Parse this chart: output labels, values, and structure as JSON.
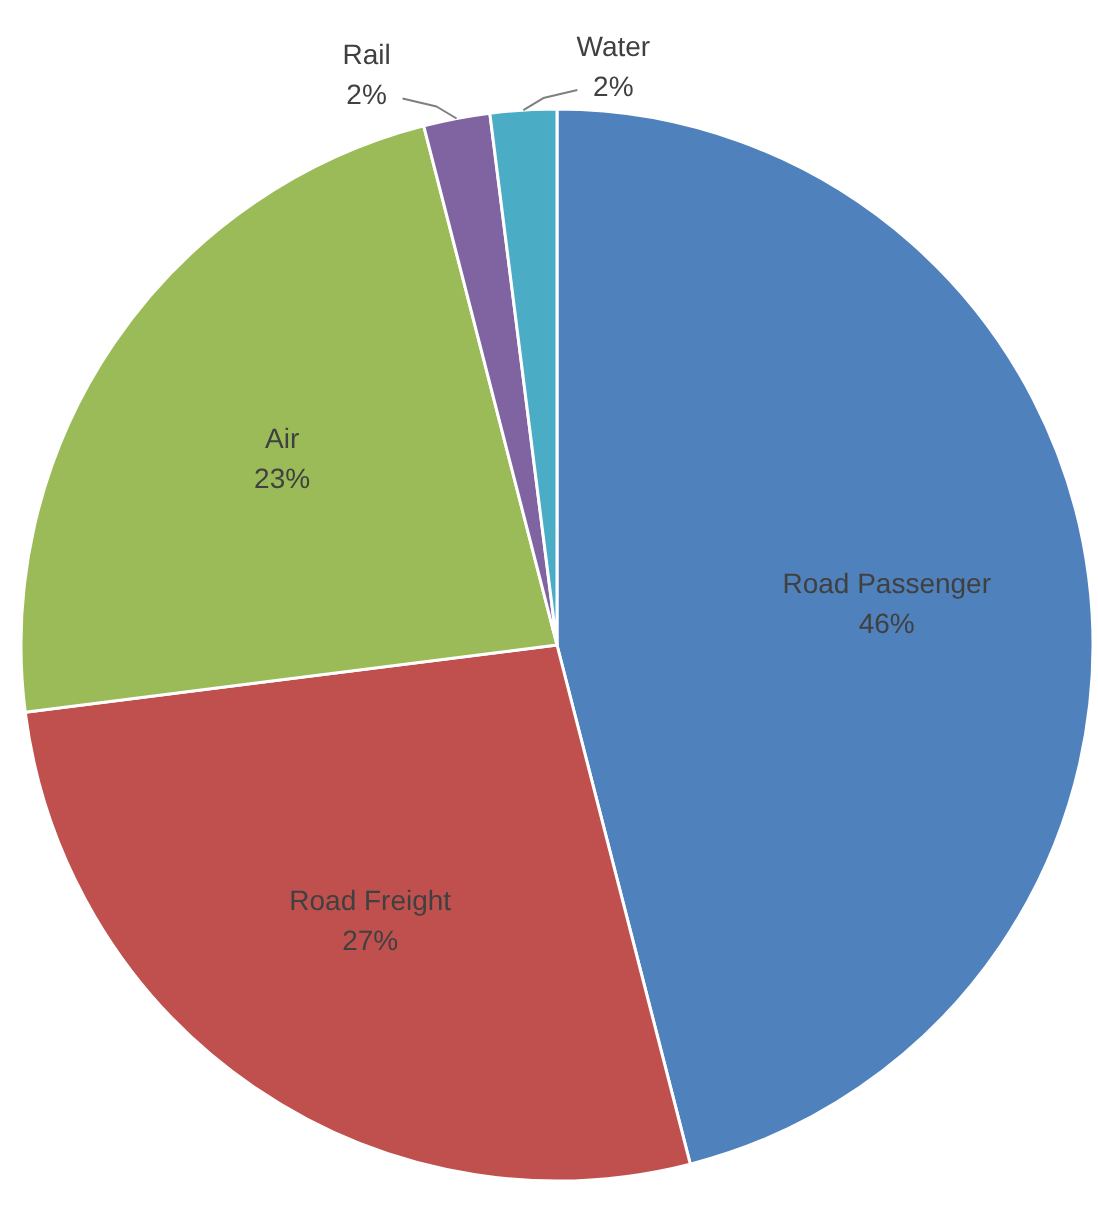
{
  "chart_data": {
    "type": "pie",
    "categories": [
      "Road Passenger",
      "Road Freight",
      "Air",
      "Rail",
      "Water"
    ],
    "values": [
      46,
      27,
      23,
      2,
      2
    ],
    "colors": [
      "#4f81bd",
      "#c0504d",
      "#9bbb59",
      "#8064a2",
      "#4bacc6"
    ],
    "value_labels": [
      "46%",
      "27%",
      "23%",
      "2%",
      "2%"
    ]
  }
}
